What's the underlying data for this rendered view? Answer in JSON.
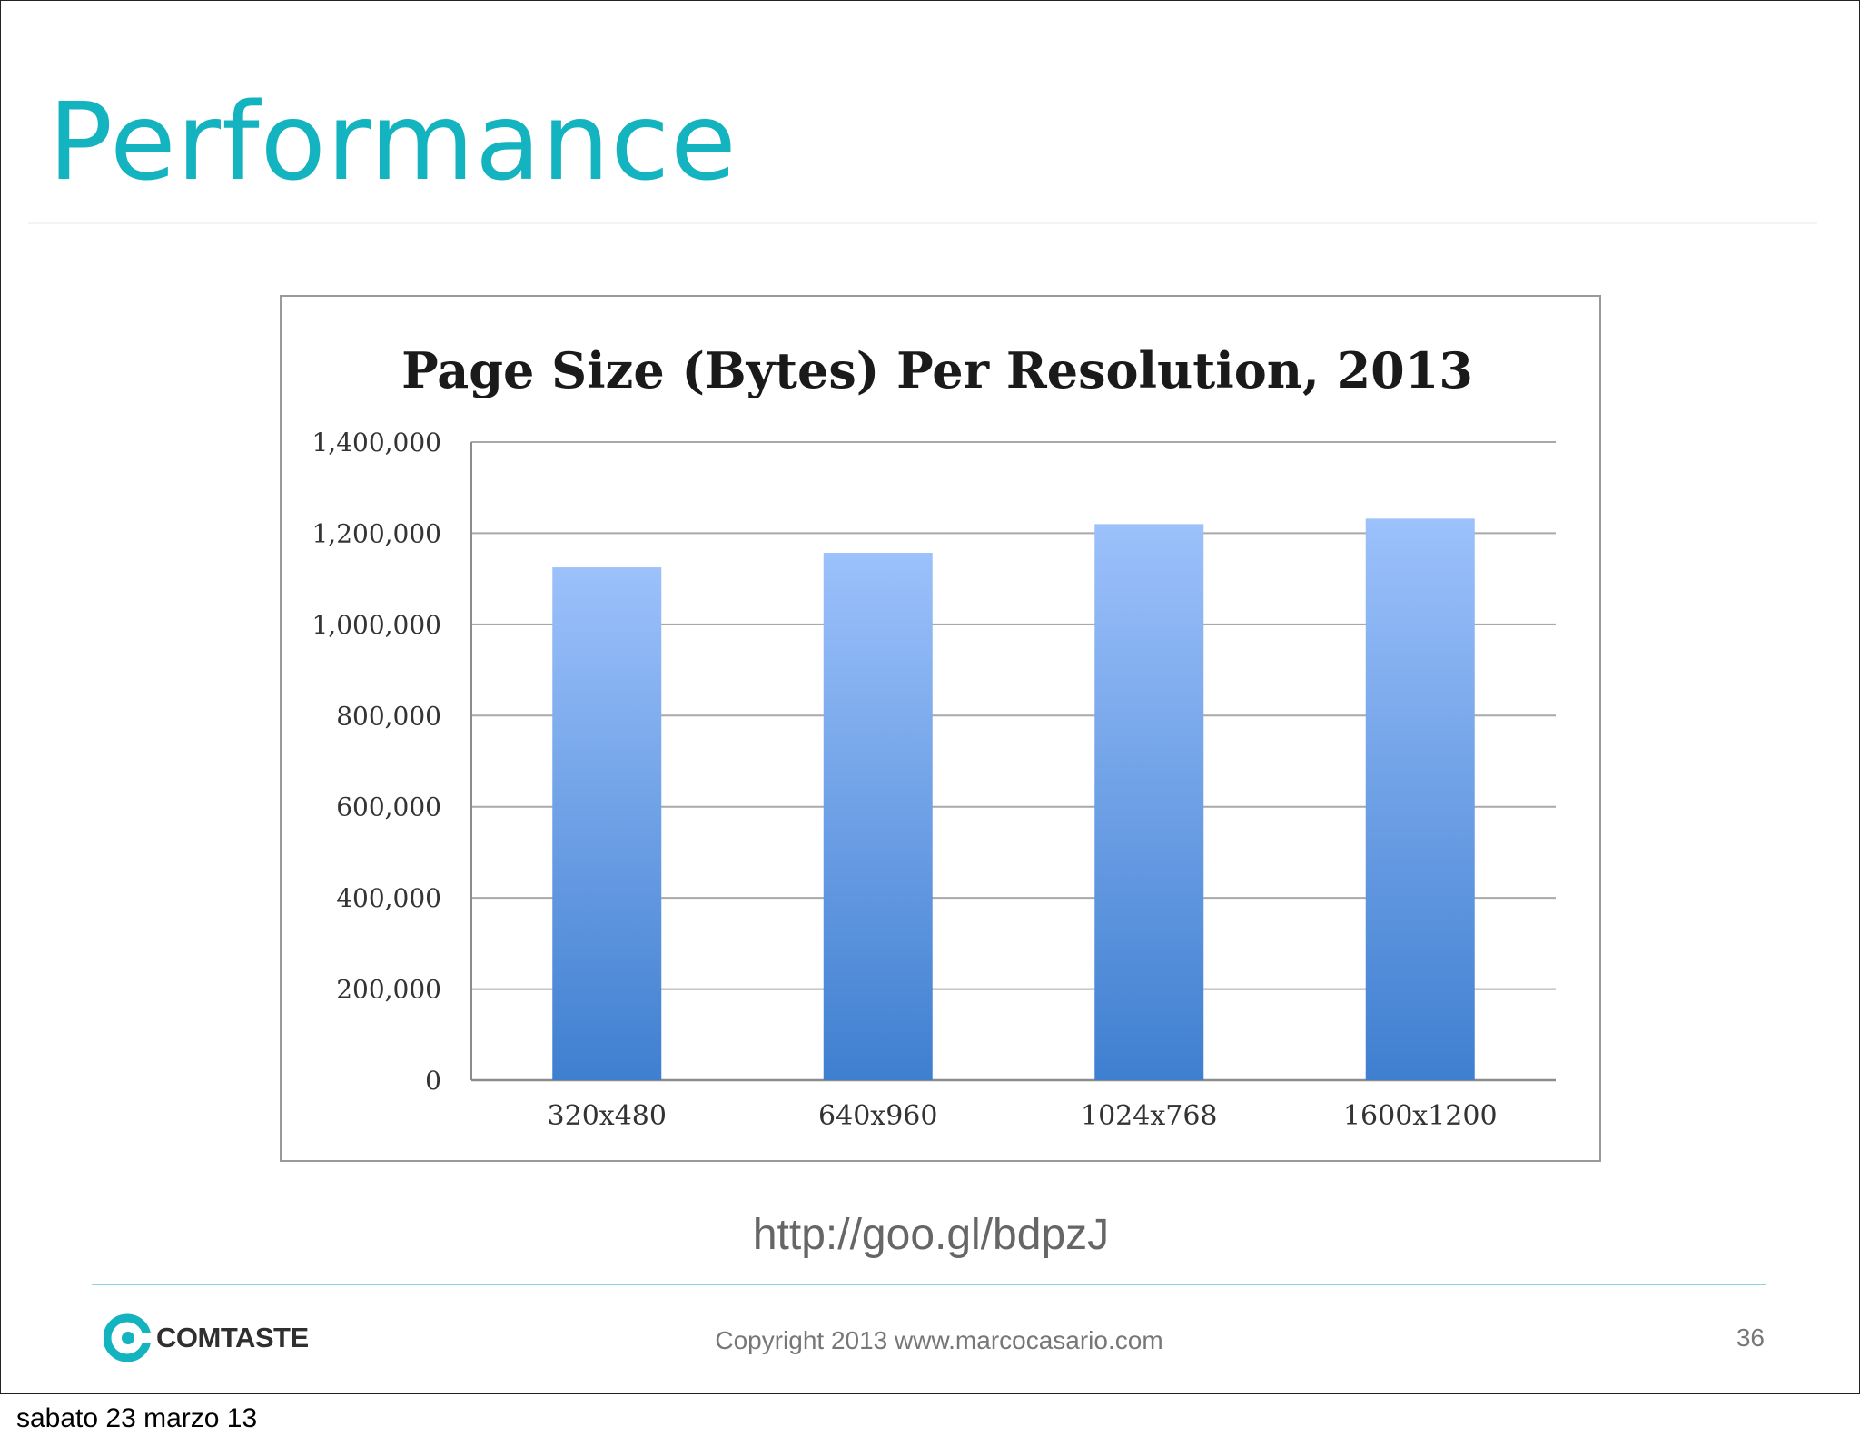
{
  "slide": {
    "title": "Performance",
    "source_link": "http://goo.gl/bdpzJ",
    "copyright": "Copyright 2013 www.marcocasario.com",
    "page_number": "36",
    "logo_text": "COMTASTE",
    "date_caption": "sabato 23 marzo 13",
    "accent_color": "#14b3c0"
  },
  "chart_data": {
    "type": "bar",
    "title": "Page Size (Bytes) Per Resolution, 2013",
    "xlabel": "",
    "ylabel": "",
    "categories": [
      "320x480",
      "640x960",
      "1024x768",
      "1600x1200"
    ],
    "values": [
      1125000,
      1157000,
      1220000,
      1232000
    ],
    "ylim": [
      0,
      1400000
    ],
    "yticks": [
      0,
      200000,
      400000,
      600000,
      800000,
      1000000,
      1200000,
      1400000
    ],
    "ytick_labels": [
      "0",
      "200,000",
      "400,000",
      "600,000",
      "800,000",
      "1,000,000",
      "1,200,000",
      "1,400,000"
    ],
    "grid": true,
    "legend": "none",
    "bar_color_top": "#9cc1fb",
    "bar_color_bottom": "#3f7fd0"
  }
}
